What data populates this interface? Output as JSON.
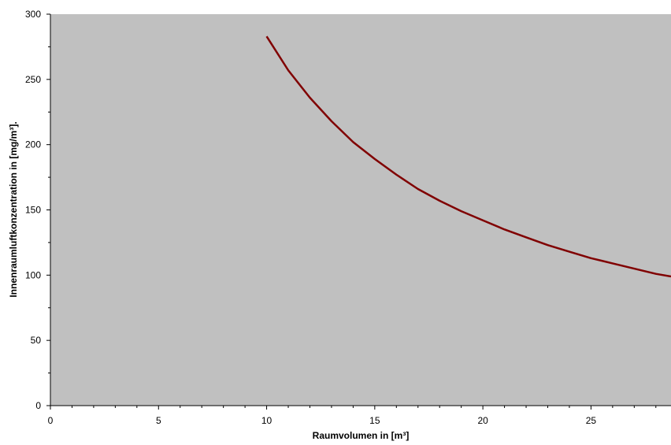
{
  "chart_data": {
    "type": "line",
    "title": "",
    "xlabel": "Raumvolumen in [m³]",
    "ylabel": "Innenraumluftkonzentration in [mg/m³].",
    "xlim": [
      0,
      28.7
    ],
    "ylim": [
      0,
      300
    ],
    "x_ticks": [
      0,
      5,
      10,
      15,
      20,
      25
    ],
    "y_ticks": [
      0,
      50,
      100,
      150,
      200,
      250,
      300
    ],
    "grid": false,
    "legend": "none",
    "plot_background": "#c0c0c0",
    "series": [
      {
        "color": "#800000",
        "x": [
          10,
          11,
          12,
          13,
          14,
          15,
          16,
          17,
          18,
          19,
          20,
          21,
          22,
          23,
          24,
          25,
          26,
          27,
          28,
          28.7
        ],
        "y": [
          283,
          257,
          236,
          218,
          202,
          189,
          177,
          166,
          157,
          149,
          142,
          135,
          129,
          123,
          118,
          113,
          109,
          105,
          101,
          99
        ]
      }
    ]
  }
}
